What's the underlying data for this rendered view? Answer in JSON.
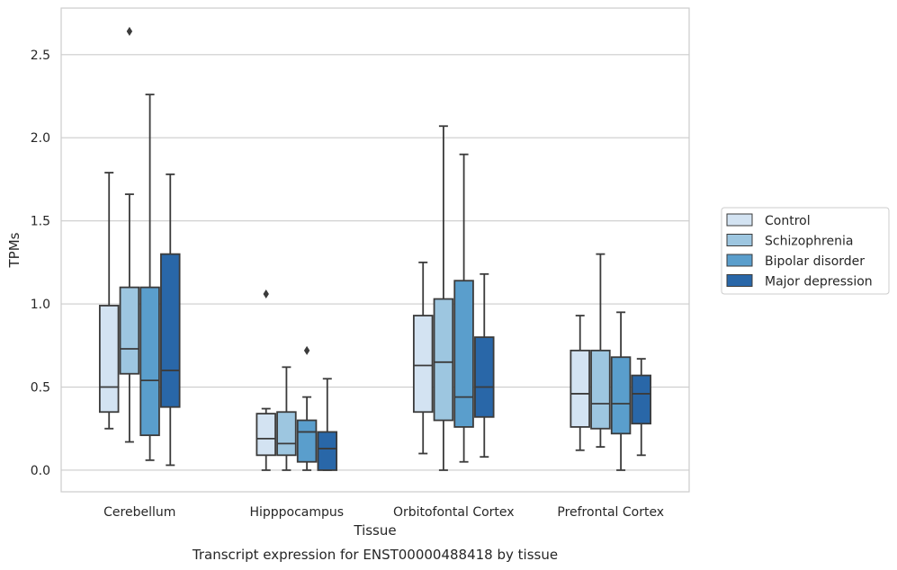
{
  "caption": "Transcript expression for ENST00000488418 by tissue",
  "chart_data": {
    "type": "box",
    "xlabel": "Tissue",
    "ylabel": "TPMs",
    "ylim": [
      -0.13,
      2.78
    ],
    "yticks": [
      0.0,
      0.5,
      1.0,
      1.5,
      2.0,
      2.5
    ],
    "ytick_labels": [
      "0.0",
      "0.5",
      "1.0",
      "1.5",
      "2.0",
      "2.5"
    ],
    "grid": "horizontal",
    "legend_position": "right",
    "categories": [
      "Cerebellum",
      "Hipppocampus",
      "Orbitofontal Cortex",
      "Prefrontal Cortex"
    ],
    "series": [
      {
        "name": "Control",
        "color": "#d3e3f2",
        "boxes": [
          {
            "whislo": 0.25,
            "q1": 0.35,
            "med": 0.5,
            "q3": 0.99,
            "whishi": 1.79,
            "fliers": []
          },
          {
            "whislo": 0.0,
            "q1": 0.09,
            "med": 0.19,
            "q3": 0.34,
            "whishi": 0.37,
            "fliers": [
              1.06
            ]
          },
          {
            "whislo": 0.1,
            "q1": 0.35,
            "med": 0.63,
            "q3": 0.93,
            "whishi": 1.25,
            "fliers": []
          },
          {
            "whislo": 0.12,
            "q1": 0.26,
            "med": 0.46,
            "q3": 0.72,
            "whishi": 0.93,
            "fliers": []
          }
        ]
      },
      {
        "name": "Schizophrenia",
        "color": "#9dc6e0",
        "boxes": [
          {
            "whislo": 0.17,
            "q1": 0.58,
            "med": 0.73,
            "q3": 1.1,
            "whishi": 1.66,
            "fliers": [
              2.64
            ]
          },
          {
            "whislo": 0.0,
            "q1": 0.09,
            "med": 0.16,
            "q3": 0.35,
            "whishi": 0.62,
            "fliers": []
          },
          {
            "whislo": 0.0,
            "q1": 0.3,
            "med": 0.65,
            "q3": 1.03,
            "whishi": 2.07,
            "fliers": []
          },
          {
            "whislo": 0.14,
            "q1": 0.25,
            "med": 0.4,
            "q3": 0.72,
            "whishi": 1.3,
            "fliers": []
          }
        ]
      },
      {
        "name": "Bipolar disorder",
        "color": "#5a9ecc",
        "boxes": [
          {
            "whislo": 0.06,
            "q1": 0.21,
            "med": 0.54,
            "q3": 1.1,
            "whishi": 2.26,
            "fliers": []
          },
          {
            "whislo": 0.0,
            "q1": 0.05,
            "med": 0.23,
            "q3": 0.3,
            "whishi": 0.44,
            "fliers": [
              0.72
            ]
          },
          {
            "whislo": 0.05,
            "q1": 0.26,
            "med": 0.44,
            "q3": 1.14,
            "whishi": 1.9,
            "fliers": []
          },
          {
            "whislo": 0.0,
            "q1": 0.22,
            "med": 0.4,
            "q3": 0.68,
            "whishi": 0.95,
            "fliers": []
          }
        ]
      },
      {
        "name": "Major depression",
        "color": "#2967a8",
        "boxes": [
          {
            "whislo": 0.03,
            "q1": 0.38,
            "med": 0.6,
            "q3": 1.3,
            "whishi": 1.78,
            "fliers": []
          },
          {
            "whislo": 0.0,
            "q1": 0.0,
            "med": 0.13,
            "q3": 0.23,
            "whishi": 0.55,
            "fliers": []
          },
          {
            "whislo": 0.08,
            "q1": 0.32,
            "med": 0.5,
            "q3": 0.8,
            "whishi": 1.18,
            "fliers": []
          },
          {
            "whislo": 0.09,
            "q1": 0.28,
            "med": 0.46,
            "q3": 0.57,
            "whishi": 0.67,
            "fliers": []
          }
        ]
      }
    ]
  }
}
